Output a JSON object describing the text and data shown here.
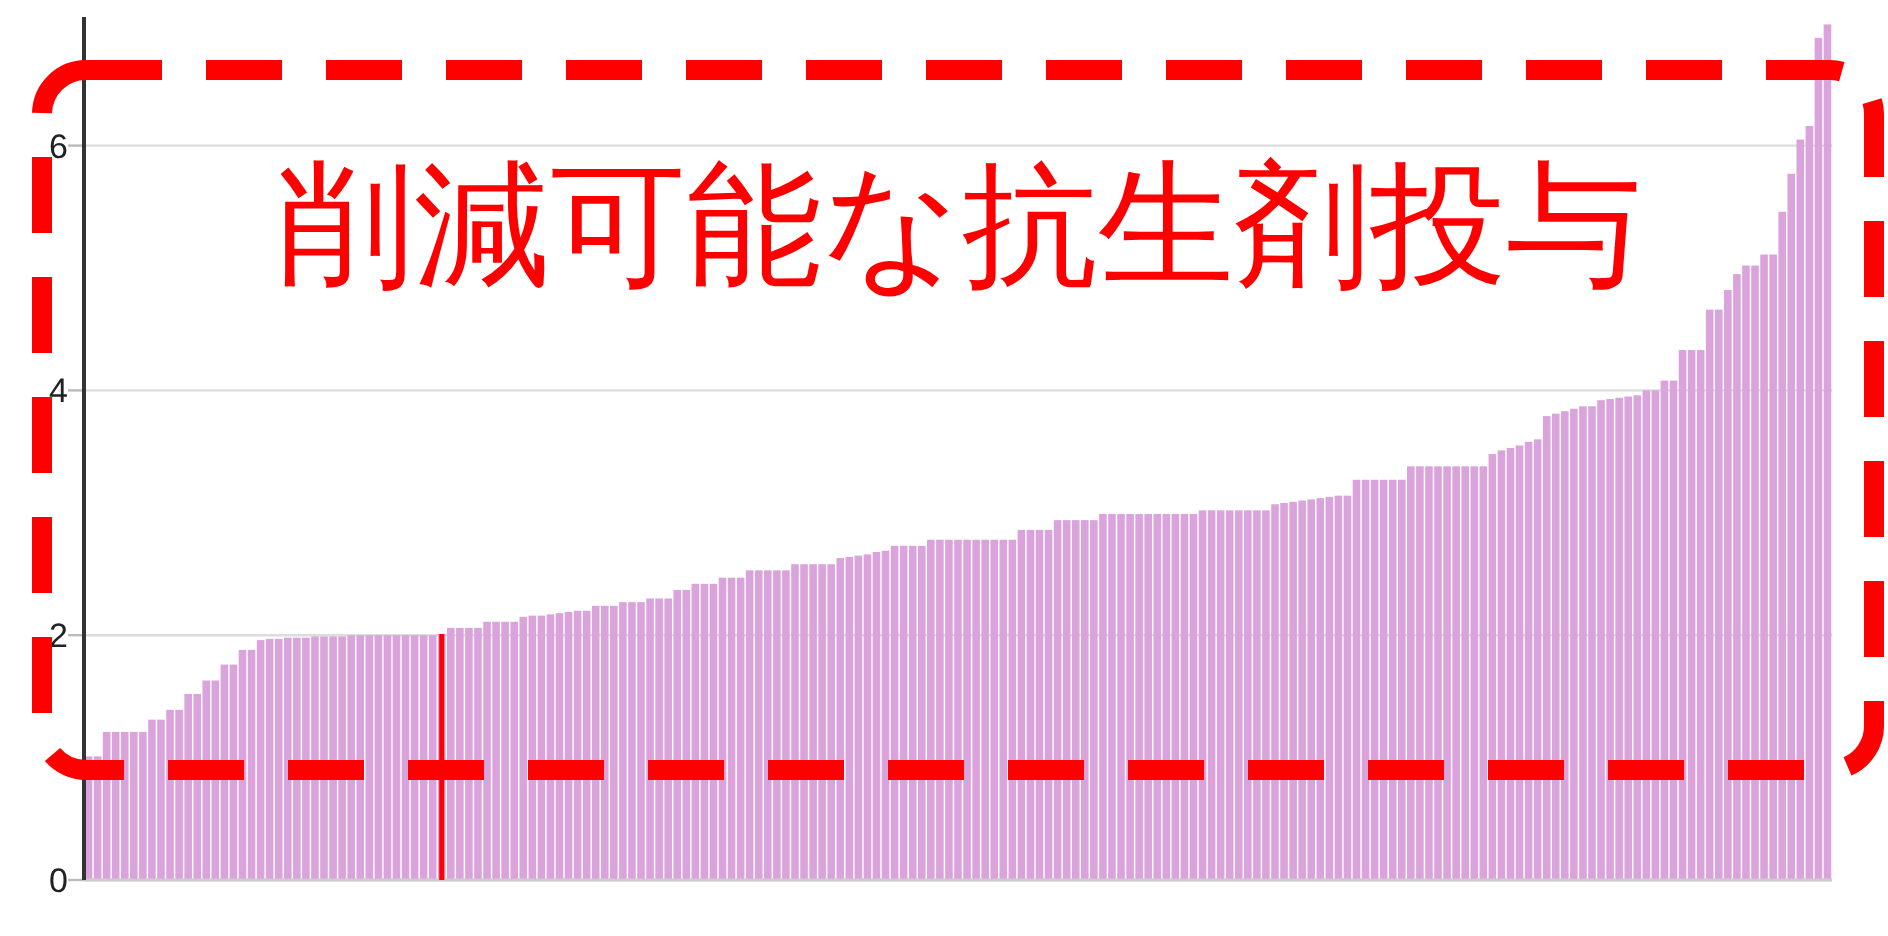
{
  "chart_data": {
    "type": "bar",
    "color": "#dba3dc",
    "categories": [
      null,
      null,
      null,
      null,
      null,
      null,
      null,
      null,
      null,
      null,
      null,
      null,
      null,
      null,
      null,
      null,
      null,
      null,
      null,
      null,
      null,
      null,
      null,
      null,
      null,
      null,
      null,
      null,
      null,
      null,
      null,
      null,
      null,
      null,
      null,
      null,
      null,
      null,
      null,
      null,
      null,
      null,
      null,
      null,
      null,
      null,
      null,
      null,
      null,
      null,
      null,
      null,
      null,
      null,
      null,
      null,
      null,
      null,
      null,
      null,
      null,
      null,
      null,
      null,
      null,
      null,
      null,
      null,
      null,
      null,
      null,
      null,
      null,
      null,
      null,
      null,
      null,
      null,
      null,
      null,
      null,
      null,
      null,
      null,
      null,
      null,
      null,
      null,
      null,
      null,
      null,
      null,
      null,
      null,
      null,
      null,
      null,
      null,
      null,
      null,
      null,
      null,
      null,
      null,
      null,
      null,
      null,
      null,
      null,
      null,
      null,
      null,
      null,
      null,
      null,
      null,
      null,
      null,
      null,
      null,
      null,
      null,
      null,
      null,
      null,
      null,
      null,
      null,
      null,
      null,
      null,
      null,
      null,
      null,
      null,
      null,
      null,
      null,
      null,
      null,
      null,
      null,
      null,
      null,
      null,
      null,
      null,
      null,
      null,
      null,
      null,
      null,
      null,
      null,
      null,
      null,
      null,
      null,
      null,
      null,
      null,
      null,
      null,
      null,
      null,
      null,
      null,
      null,
      null,
      null,
      null,
      null,
      null,
      null,
      null,
      null,
      null,
      null,
      null,
      null,
      null,
      null,
      null,
      null,
      null,
      null,
      null,
      null,
      null,
      null,
      null,
      null,
      null
    ],
    "values": [
      1.01,
      1.01,
      1.21,
      1.21,
      1.21,
      1.21,
      1.21,
      1.31,
      1.31,
      1.39,
      1.39,
      1.52,
      1.52,
      1.63,
      1.63,
      1.76,
      1.76,
      1.88,
      1.88,
      1.96,
      1.97,
      1.97,
      1.98,
      1.98,
      1.98,
      1.99,
      1.99,
      1.99,
      1.99,
      2.0,
      2.0,
      2.0,
      2.0,
      2.0,
      2.0,
      2.0,
      2.0,
      2.0,
      2.0,
      2.01,
      2.06,
      2.06,
      2.06,
      2.06,
      2.11,
      2.11,
      2.11,
      2.11,
      2.15,
      2.16,
      2.16,
      2.17,
      2.18,
      2.19,
      2.2,
      2.2,
      2.24,
      2.24,
      2.24,
      2.27,
      2.27,
      2.27,
      2.3,
      2.3,
      2.3,
      2.37,
      2.37,
      2.42,
      2.42,
      2.42,
      2.47,
      2.47,
      2.47,
      2.53,
      2.53,
      2.53,
      2.53,
      2.53,
      2.58,
      2.58,
      2.58,
      2.58,
      2.58,
      2.63,
      2.64,
      2.65,
      2.66,
      2.68,
      2.69,
      2.73,
      2.73,
      2.73,
      2.73,
      2.78,
      2.78,
      2.78,
      2.78,
      2.78,
      2.78,
      2.78,
      2.78,
      2.78,
      2.78,
      2.86,
      2.86,
      2.86,
      2.86,
      2.94,
      2.94,
      2.94,
      2.94,
      2.94,
      2.99,
      2.99,
      2.99,
      2.99,
      2.99,
      2.99,
      2.99,
      2.99,
      2.99,
      2.99,
      2.99,
      3.02,
      3.02,
      3.02,
      3.02,
      3.02,
      3.02,
      3.02,
      3.02,
      3.07,
      3.08,
      3.09,
      3.1,
      3.11,
      3.12,
      3.13,
      3.14,
      3.14,
      3.27,
      3.27,
      3.27,
      3.27,
      3.27,
      3.27,
      3.38,
      3.38,
      3.38,
      3.38,
      3.38,
      3.38,
      3.38,
      3.38,
      3.38,
      3.48,
      3.51,
      3.53,
      3.55,
      3.58,
      3.6,
      3.79,
      3.81,
      3.83,
      3.85,
      3.87,
      3.87,
      3.92,
      3.93,
      3.94,
      3.95,
      3.96,
      4.0,
      4.0,
      4.08,
      4.08,
      4.33,
      4.33,
      4.33,
      4.66,
      4.66,
      4.82,
      4.95,
      5.02,
      5.02,
      5.11,
      5.11,
      5.46,
      5.77,
      6.05,
      6.16,
      6.88,
      6.99
    ],
    "ylim": [
      0,
      7.05
    ],
    "yticks": [
      0,
      2,
      4,
      6
    ],
    "grid": "y",
    "annotations": [
      "削減可能な抗生剤投与"
    ]
  }
}
